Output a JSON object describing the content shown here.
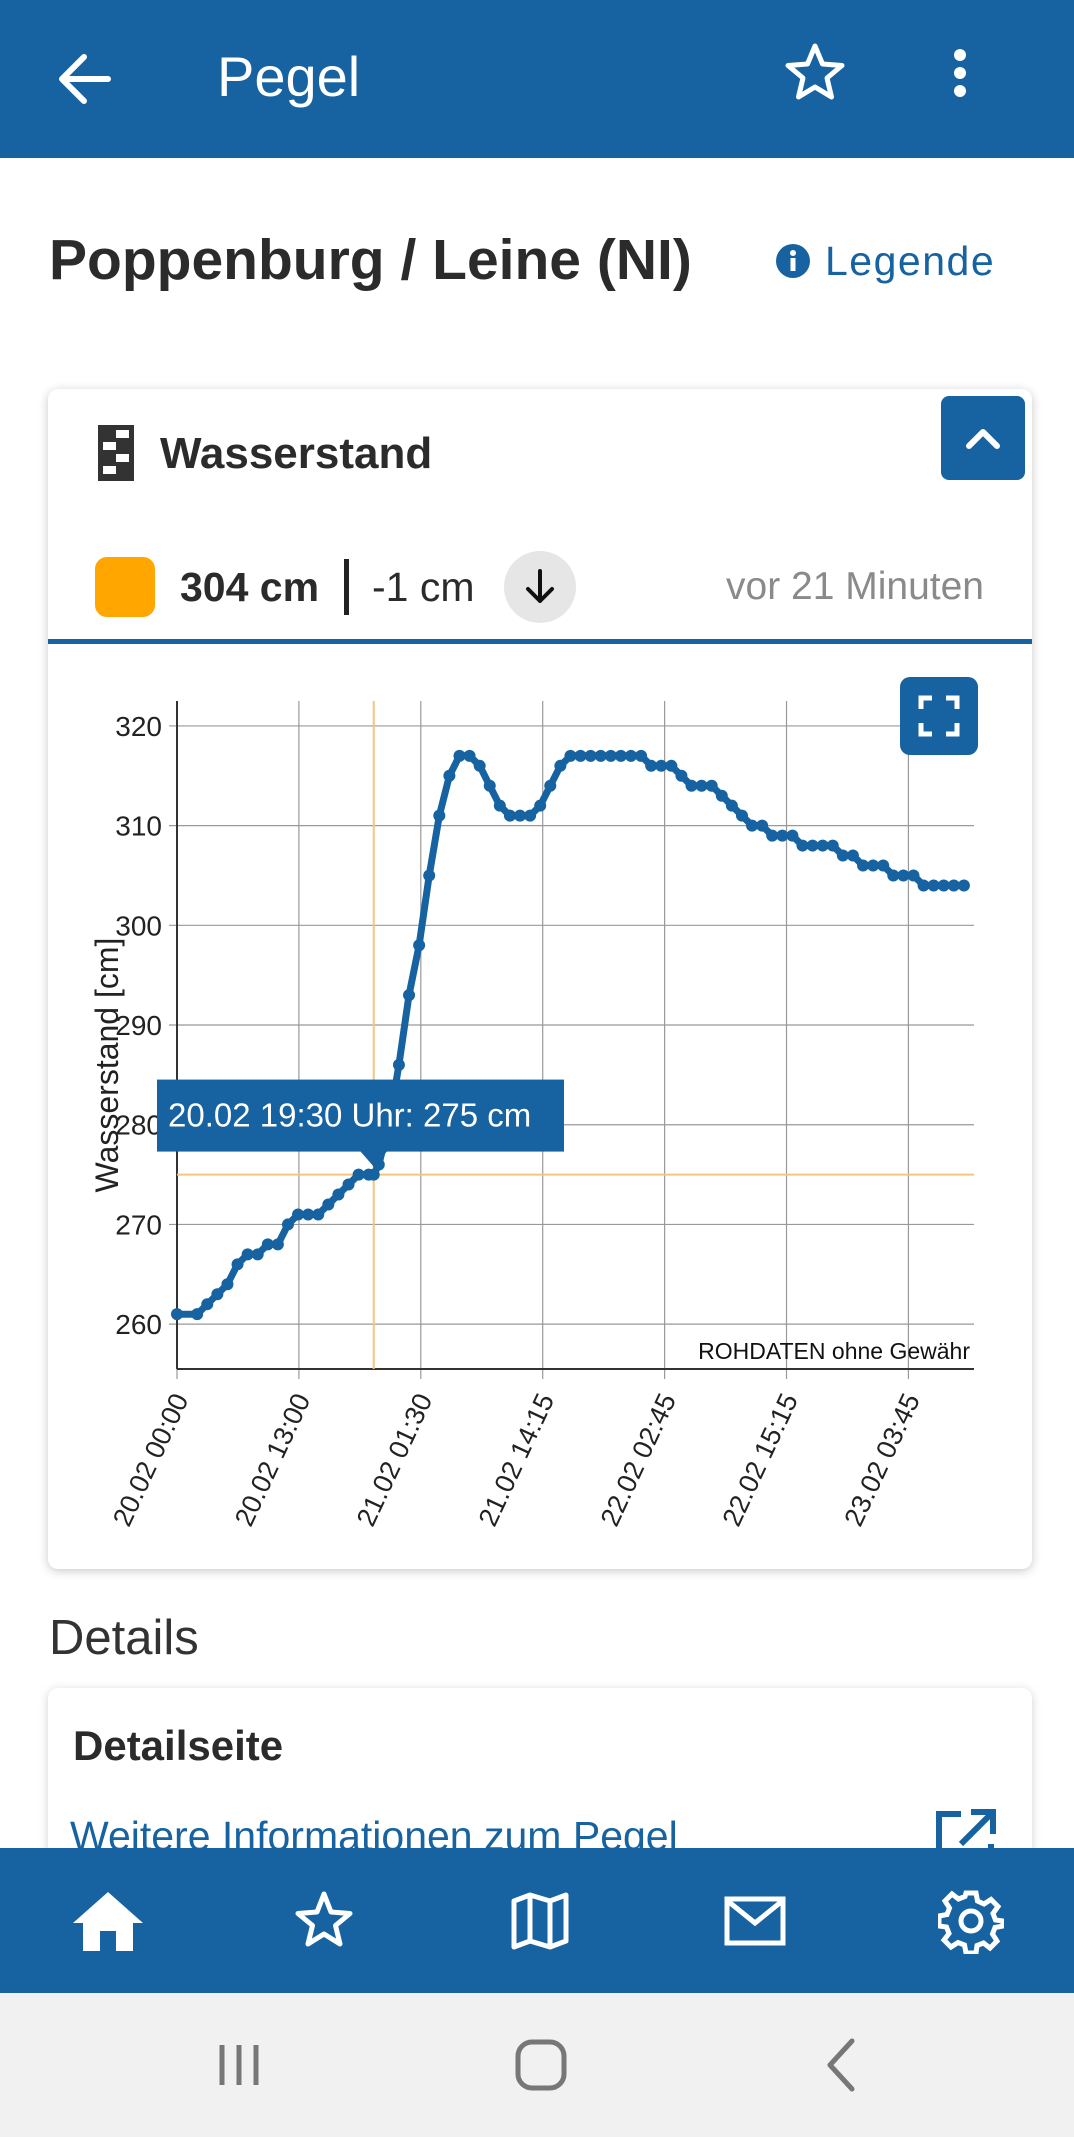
{
  "appbar": {
    "title": "Pegel",
    "back_icon": "arrow-left-icon",
    "fav_icon": "star-outline-icon",
    "menu_icon": "more-vertical-icon"
  },
  "station": {
    "name": "Poppenburg / Leine (NI)",
    "legend_label": "Legende"
  },
  "measurement": {
    "title": "Wasserstand",
    "status_color": "#ffa600",
    "value": "304 cm",
    "change": "-1 cm",
    "trend_icon": "arrow-down-icon",
    "time_ago": "vor 21 Minuten"
  },
  "chart_data": {
    "type": "scatter",
    "ylabel": "Wasserstand [cm]",
    "xlabel": "",
    "x_ticks": [
      "20.02 00:00",
      "20.02 13:00",
      "21.02 01:30",
      "21.02 14:15",
      "22.02 02:45",
      "22.02 15:15",
      "23.02 03:45"
    ],
    "y_ticks": [
      260,
      270,
      280,
      290,
      300,
      310,
      320
    ],
    "ylim": [
      255.5,
      322.5
    ],
    "xlim_hours": [
      0,
      79
    ],
    "grid": true,
    "watermark": "ROHDATEN ohne Gewähr",
    "tooltip": "20.02 19:30 Uhr: 275 cm",
    "crosshair": {
      "hour": 19.5,
      "value": 275
    },
    "accent": "#1762a0",
    "crosshair_color": "#f2c77c",
    "series": [
      {
        "x": [
          0,
          2,
          3,
          4,
          5,
          6,
          7,
          8,
          9,
          10,
          11,
          12,
          13,
          14,
          15,
          16,
          17,
          18,
          19,
          19.5,
          20,
          21,
          22,
          23,
          24,
          25,
          26,
          27,
          28,
          29,
          30,
          31,
          32,
          33,
          34,
          35,
          36,
          37,
          38,
          39,
          40,
          41,
          42,
          43,
          44,
          45,
          46,
          47,
          48,
          49,
          50,
          51,
          52,
          53,
          54,
          55,
          56,
          57,
          58,
          59,
          60,
          61,
          62,
          63,
          64,
          65,
          66,
          67,
          68,
          69,
          70,
          71,
          72,
          73,
          74,
          75,
          76,
          77,
          78
        ],
        "values": [
          261,
          261,
          262,
          263,
          264,
          266,
          267,
          267,
          268,
          268,
          270,
          271,
          271,
          271,
          272,
          273,
          274,
          275,
          275,
          275,
          276,
          280,
          286,
          293,
          298,
          305,
          311,
          315,
          317,
          317,
          316,
          314,
          312,
          311,
          311,
          311,
          312,
          314,
          316,
          317,
          317,
          317,
          317,
          317,
          317,
          317,
          317,
          316,
          316,
          316,
          315,
          314,
          314,
          314,
          313,
          312,
          311,
          310,
          310,
          309,
          309,
          309,
          308,
          308,
          308,
          308,
          307,
          307,
          306,
          306,
          306,
          305,
          305,
          305,
          304,
          304,
          304,
          304,
          304
        ]
      }
    ]
  },
  "details": {
    "heading": "Details",
    "card_title": "Detailseite",
    "link_text": "Weitere Informationen zum Pegel",
    "link_icon": "open-external-icon"
  },
  "bottom_nav": [
    "home-icon",
    "star-outline-icon",
    "map-icon",
    "mail-icon",
    "settings-gear-icon"
  ]
}
